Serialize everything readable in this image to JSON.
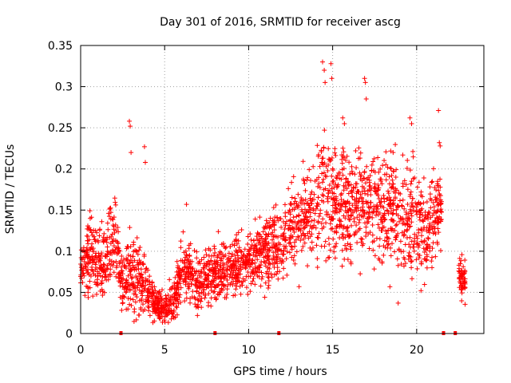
{
  "chart_data": {
    "type": "scatter",
    "title": "Day 301 of 2016, SRMTID for receiver ascg",
    "xlabel": "GPS time / hours",
    "ylabel": "SRMTID / TECUs",
    "xlim": [
      0,
      24
    ],
    "ylim": [
      0,
      0.35
    ],
    "x_ticks": [
      0,
      5,
      10,
      15,
      20
    ],
    "x_tick_labels": [
      "0",
      "5",
      "10",
      "15",
      "20"
    ],
    "y_ticks": [
      0,
      0.05,
      0.1,
      0.15,
      0.2,
      0.25,
      0.3,
      0.35
    ],
    "y_tick_labels": [
      "0",
      "0.05",
      "0.1",
      "0.15",
      "0.2",
      "0.25",
      "0.3",
      "0.35"
    ],
    "grid": true,
    "marker": "plus",
    "marker_color": "#ff0000",
    "series": [
      {
        "name": "ascg",
        "profile": [
          {
            "x": 0.0,
            "y": 0.07,
            "spread": 0.02
          },
          {
            "x": 0.5,
            "y": 0.1,
            "spread": 0.025
          },
          {
            "x": 1.0,
            "y": 0.09,
            "spread": 0.03
          },
          {
            "x": 1.5,
            "y": 0.09,
            "spread": 0.03
          },
          {
            "x": 2.0,
            "y": 0.12,
            "spread": 0.035
          },
          {
            "x": 2.5,
            "y": 0.06,
            "spread": 0.02
          },
          {
            "x": 3.0,
            "y": 0.07,
            "spread": 0.03
          },
          {
            "x": 3.5,
            "y": 0.07,
            "spread": 0.03
          },
          {
            "x": 4.0,
            "y": 0.05,
            "spread": 0.015
          },
          {
            "x": 4.5,
            "y": 0.035,
            "spread": 0.012
          },
          {
            "x": 5.0,
            "y": 0.03,
            "spread": 0.01
          },
          {
            "x": 5.5,
            "y": 0.04,
            "spread": 0.015
          },
          {
            "x": 6.0,
            "y": 0.08,
            "spread": 0.025
          },
          {
            "x": 6.5,
            "y": 0.075,
            "spread": 0.02
          },
          {
            "x": 7.0,
            "y": 0.06,
            "spread": 0.02
          },
          {
            "x": 7.5,
            "y": 0.065,
            "spread": 0.02
          },
          {
            "x": 8.0,
            "y": 0.075,
            "spread": 0.02
          },
          {
            "x": 9.0,
            "y": 0.08,
            "spread": 0.02
          },
          {
            "x": 10.0,
            "y": 0.085,
            "spread": 0.02
          },
          {
            "x": 11.0,
            "y": 0.1,
            "spread": 0.025
          },
          {
            "x": 12.0,
            "y": 0.11,
            "spread": 0.03
          },
          {
            "x": 13.0,
            "y": 0.14,
            "spread": 0.03
          },
          {
            "x": 14.0,
            "y": 0.16,
            "spread": 0.035
          },
          {
            "x": 14.5,
            "y": 0.18,
            "spread": 0.05
          },
          {
            "x": 15.0,
            "y": 0.16,
            "spread": 0.04
          },
          {
            "x": 16.0,
            "y": 0.15,
            "spread": 0.04
          },
          {
            "x": 17.0,
            "y": 0.16,
            "spread": 0.04
          },
          {
            "x": 18.0,
            "y": 0.15,
            "spread": 0.04
          },
          {
            "x": 19.0,
            "y": 0.14,
            "spread": 0.04
          },
          {
            "x": 20.0,
            "y": 0.14,
            "spread": 0.04
          },
          {
            "x": 20.5,
            "y": 0.12,
            "spread": 0.04
          },
          {
            "x": 21.0,
            "y": 0.13,
            "spread": 0.04
          },
          {
            "x": 21.5,
            "y": 0.16,
            "spread": 0.02
          },
          {
            "x": 22.0,
            "y": null,
            "spread": 0
          },
          {
            "x": 22.5,
            "y": 0.075,
            "spread": 0.02
          },
          {
            "x": 22.9,
            "y": 0.06,
            "spread": 0.015
          }
        ],
        "highlights": [
          {
            "x": 2.9,
            "y": 0.258
          },
          {
            "x": 2.95,
            "y": 0.252
          },
          {
            "x": 3.0,
            "y": 0.22
          },
          {
            "x": 3.8,
            "y": 0.227
          },
          {
            "x": 3.85,
            "y": 0.208
          },
          {
            "x": 6.3,
            "y": 0.157
          },
          {
            "x": 14.4,
            "y": 0.33
          },
          {
            "x": 14.5,
            "y": 0.32
          },
          {
            "x": 14.55,
            "y": 0.305
          },
          {
            "x": 14.9,
            "y": 0.328
          },
          {
            "x": 14.95,
            "y": 0.31
          },
          {
            "x": 16.9,
            "y": 0.31
          },
          {
            "x": 16.95,
            "y": 0.305
          },
          {
            "x": 17.0,
            "y": 0.285
          },
          {
            "x": 19.6,
            "y": 0.262
          },
          {
            "x": 19.7,
            "y": 0.255
          },
          {
            "x": 21.3,
            "y": 0.271
          },
          {
            "x": 21.35,
            "y": 0.232
          },
          {
            "x": 21.4,
            "y": 0.228
          },
          {
            "x": 18.6,
            "y": 0.22
          },
          {
            "x": 15.6,
            "y": 0.262
          },
          {
            "x": 15.7,
            "y": 0.255
          },
          {
            "x": 18.9,
            "y": 0.037
          },
          {
            "x": 13.0,
            "y": 0.057
          }
        ],
        "zero_markers": [
          2.4,
          8.0,
          11.8,
          21.6,
          22.3
        ]
      }
    ]
  }
}
